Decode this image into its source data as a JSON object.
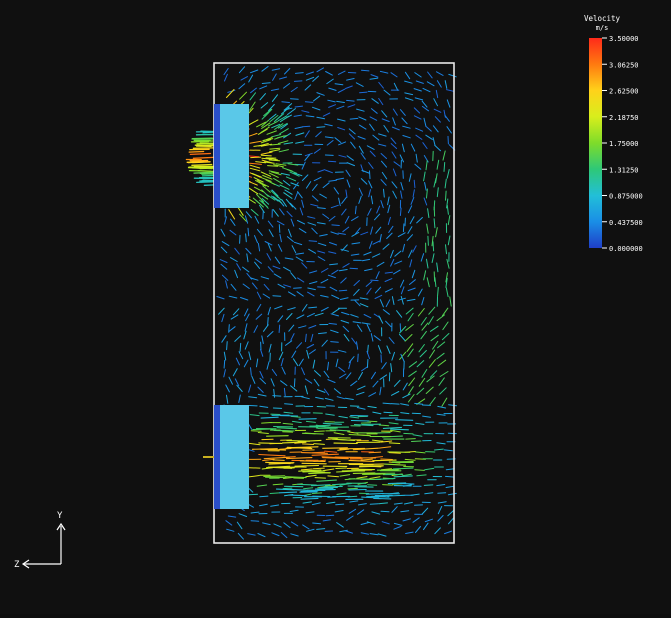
{
  "legend": {
    "title": "Velocity",
    "unit": "m/s",
    "ticks": [
      "3.50000",
      "3.06250",
      "2.62500",
      "2.18750",
      "1.75000",
      "1.31250",
      "0.875000",
      "0.437500",
      "0.000000"
    ],
    "colors": [
      "#ff2a1a",
      "#ff7a10",
      "#ffd21a",
      "#d8ee1c",
      "#7edc2a",
      "#2ec878",
      "#22bfd8",
      "#1a8ee6",
      "#1f3ec8"
    ]
  },
  "axes": {
    "y_label": "Y",
    "z_label": "Z"
  },
  "colors": {
    "background": "#101010",
    "domain_outline": "#e8e8e8",
    "inlet_fill": "#5ac8e8",
    "inlet_edge": "#2a4ec8"
  },
  "flow": {
    "max_velocity": 3.5,
    "top_inlet_jet_peak": 3.3,
    "bottom_jet_peak": 3.1,
    "background_velocity": 0.6
  }
}
